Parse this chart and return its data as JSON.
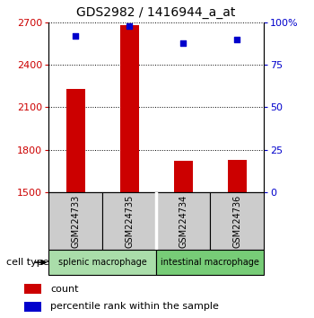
{
  "title": "GDS2982 / 1416944_a_at",
  "samples": [
    "GSM224733",
    "GSM224735",
    "GSM224734",
    "GSM224736"
  ],
  "counts": [
    2230,
    2680,
    1720,
    1730
  ],
  "percentile_ranks": [
    92,
    98,
    88,
    90
  ],
  "ylim_left": [
    1500,
    2700
  ],
  "ylim_right": [
    0,
    100
  ],
  "yticks_left": [
    1500,
    1800,
    2100,
    2400,
    2700
  ],
  "yticks_right": [
    0,
    25,
    50,
    75,
    100
  ],
  "ytick_labels_right": [
    "0",
    "25",
    "50",
    "75",
    "100%"
  ],
  "bar_color": "#cc0000",
  "dot_color": "#0000cc",
  "bar_width": 0.35,
  "cell_type_groups": [
    {
      "label": "splenic macrophage",
      "color": "#aaddaa",
      "indices": [
        0,
        1
      ]
    },
    {
      "label": "intestinal macrophage",
      "color": "#77cc77",
      "indices": [
        2,
        3
      ]
    }
  ],
  "tick_label_fontsize": 8,
  "axis_label_color_left": "#cc0000",
  "axis_label_color_right": "#0000cc",
  "sample_box_color": "#cccccc",
  "dot_size": 18
}
